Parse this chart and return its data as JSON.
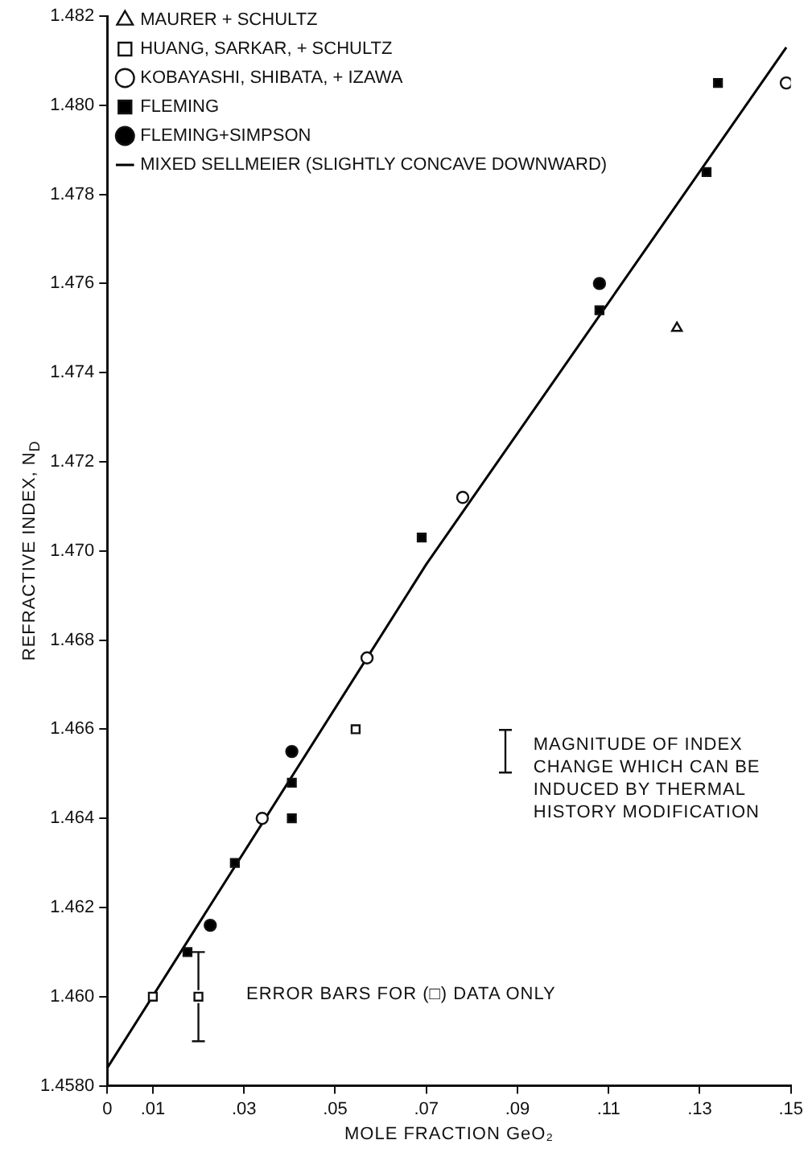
{
  "chart_data": {
    "type": "scatter",
    "xlabel": "MOLE FRACTION GeO₂",
    "ylabel": "REFRACTIVE INDEX, N$_{D}$",
    "xlim": [
      0,
      0.15
    ],
    "xticks": [
      {
        "value": 0,
        "label": "0"
      },
      {
        "value": 0.01,
        "label": ".01"
      },
      {
        "value": 0.03,
        "label": ".03"
      },
      {
        "value": 0.05,
        "label": ".05"
      },
      {
        "value": 0.07,
        "label": ".07"
      },
      {
        "value": 0.09,
        "label": ".09"
      },
      {
        "value": 0.11,
        "label": ".11"
      },
      {
        "value": 0.13,
        "label": ".13"
      },
      {
        "value": 0.15,
        "label": ".15"
      }
    ],
    "ylim": [
      1.458,
      1.482
    ],
    "yticks": [
      {
        "value": 1.458,
        "label": "1.4580"
      },
      {
        "value": 1.46,
        "label": "1.460"
      },
      {
        "value": 1.462,
        "label": "1.462"
      },
      {
        "value": 1.464,
        "label": "1.464"
      },
      {
        "value": 1.466,
        "label": "1.466"
      },
      {
        "value": 1.468,
        "label": "1.468"
      },
      {
        "value": 1.47,
        "label": "1.470"
      },
      {
        "value": 1.472,
        "label": "1.472"
      },
      {
        "value": 1.474,
        "label": "1.474"
      },
      {
        "value": 1.476,
        "label": "1.476"
      },
      {
        "value": 1.478,
        "label": "1.478"
      },
      {
        "value": 1.48,
        "label": "1.480"
      },
      {
        "value": 1.482,
        "label": "1.482"
      }
    ],
    "grid": false,
    "legend": "top left",
    "series": [
      {
        "name": "MAURER + SCHULTZ",
        "color": "#ffffff",
        "marker": "triangle",
        "x": [
          0.125
        ],
        "values": [
          1.475
        ]
      },
      {
        "name": "HUANG, SARKAR, + SCHULTZ",
        "color": "#ffffff",
        "marker": "square",
        "x": [
          0.01,
          0.02,
          0.0545
        ],
        "values": [
          1.46,
          1.46,
          1.466
        ],
        "errors": [
          null,
          0.001,
          null
        ]
      },
      {
        "name": "KOBAYASHI, SHIBATA, + IZAWA",
        "color": "#ffffff",
        "marker": "circle",
        "x": [
          0.034,
          0.057,
          0.078,
          0.149
        ],
        "values": [
          1.464,
          1.4676,
          1.4712,
          1.4805
        ]
      },
      {
        "name": "FLEMING",
        "color": "#000000",
        "marker": "square",
        "x": [
          0.0176,
          0.028,
          0.0405,
          0.0405,
          0.069,
          0.108,
          0.1315,
          0.134
        ],
        "values": [
          1.461,
          1.463,
          1.464,
          1.4648,
          1.4703,
          1.4754,
          1.4785,
          1.4805
        ]
      },
      {
        "name": "FLEMING+SIMPSON",
        "color": "#000000",
        "marker": "circle",
        "x": [
          0.0226,
          0.0405,
          0.108
        ],
        "values": [
          1.4616,
          1.4655,
          1.476
        ]
      },
      {
        "name": "MIXED SELLMEIER (SLIGHTLY CONCAVE DOWNWARD)",
        "type": "line",
        "color": "#000000",
        "marker": "none",
        "line_style": "solid",
        "x": [
          0,
          0.07,
          0.149
        ],
        "values": [
          1.4584,
          1.4697,
          1.4813
        ]
      }
    ],
    "annotations": [
      "MAGNITUDE OF INDEX CHANGE WHICH CAN BE INDUCED BY THERMAL HISTORY MODIFICATION",
      "ERROR BARS FOR (□) DATA ONLY"
    ]
  }
}
